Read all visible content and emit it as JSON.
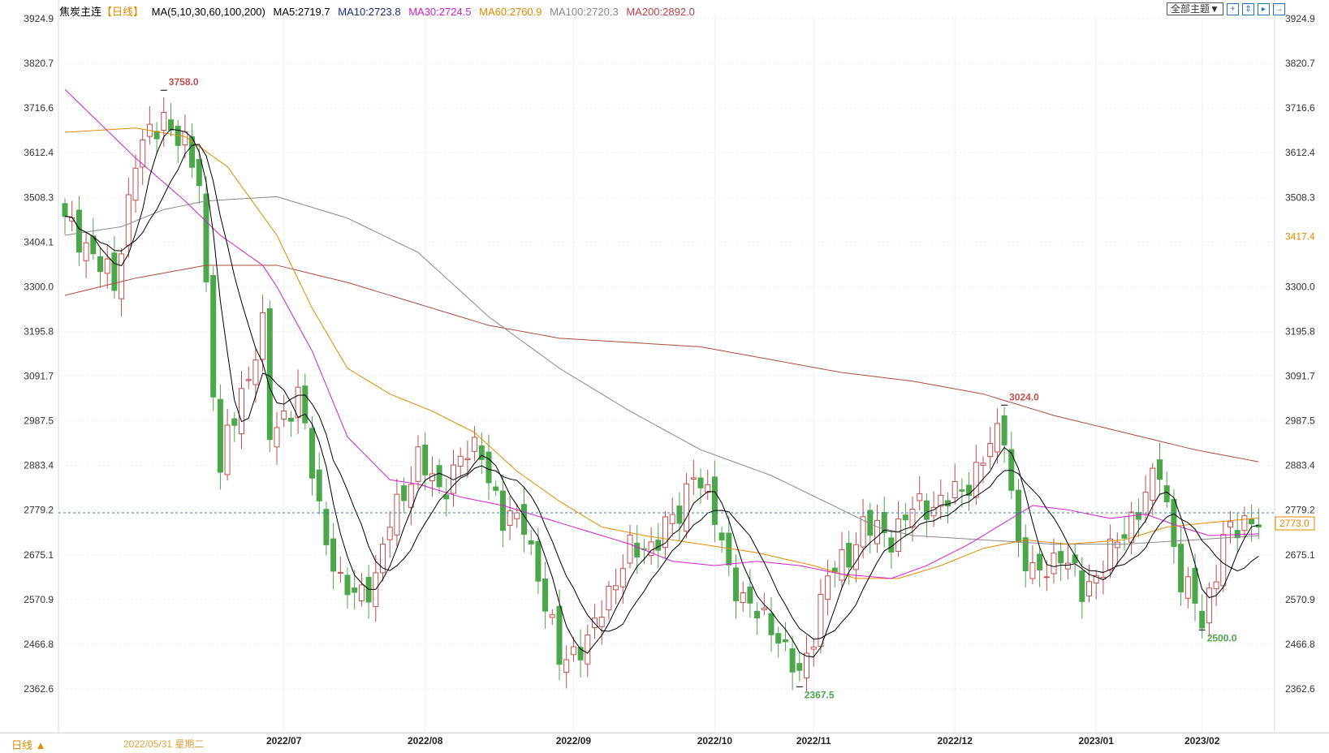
{
  "header": {
    "symbol": "焦炭主连",
    "period": "【日线】",
    "ma_title": "MA(5,10,30,60,100,200)",
    "ma5": "MA5:2719.7",
    "ma10": "MA10:2723.8",
    "ma30": "MA30:2724.5",
    "ma60": "MA60:2760.9",
    "ma100": "MA100:2720.3",
    "ma200": "MA200:2892.0"
  },
  "toolbar": {
    "theme": "全部主题▼",
    "icons": [
      "crosshair-icon",
      "zoom-range-icon",
      "zoom-in-icon",
      "shift-right-icon"
    ]
  },
  "bottom": {
    "period": "日线 ▲",
    "cursor_date": "2022/05/31 星期二"
  },
  "colors": {
    "up": "#c0504d",
    "down": "#4ca64c",
    "ma5": "#000000",
    "ma10": "#000000",
    "ma30": "#d020d0",
    "ma60": "#e08a00",
    "ma100": "#888888",
    "ma200": "#b04a3a"
  },
  "chart_data": {
    "type": "candlestick",
    "yticks": [
      "3924.9",
      "3820.7",
      "3716.6",
      "3612.4",
      "3508.3",
      "3404.1",
      "3300.0",
      "3195.8",
      "3091.7",
      "2987.5",
      "2883.4",
      "2779.2",
      "2675.1",
      "2570.9",
      "2466.8",
      "2362.6"
    ],
    "ylim": [
      2362.6,
      3924.9
    ],
    "xticks": [
      {
        "i": 31,
        "label": "2022/07"
      },
      {
        "i": 51,
        "label": "2022/08"
      },
      {
        "i": 72,
        "label": "2022/09"
      },
      {
        "i": 92,
        "label": "2022/10"
      },
      {
        "i": 106,
        "label": "2022/11"
      },
      {
        "i": 126,
        "label": "2022/12"
      },
      {
        "i": 146,
        "label": "2023/01"
      },
      {
        "i": 161,
        "label": "2023/02"
      }
    ],
    "candles": 170,
    "close_keypoints": [
      [
        0,
        3450
      ],
      [
        3,
        3400
      ],
      [
        7,
        3300
      ],
      [
        10,
        3600
      ],
      [
        14,
        3700
      ],
      [
        17,
        3620
      ],
      [
        19,
        3550
      ],
      [
        20,
        3300
      ],
      [
        22,
        2850
      ],
      [
        23,
        2950
      ],
      [
        26,
        3100
      ],
      [
        28,
        3200
      ],
      [
        29,
        2950
      ],
      [
        33,
        3050
      ],
      [
        36,
        2780
      ],
      [
        39,
        2600
      ],
      [
        41,
        2580
      ],
      [
        44,
        2620
      ],
      [
        46,
        2750
      ],
      [
        50,
        2900
      ],
      [
        53,
        2820
      ],
      [
        56,
        2900
      ],
      [
        59,
        2920
      ],
      [
        62,
        2750
      ],
      [
        65,
        2760
      ],
      [
        68,
        2550
      ],
      [
        70,
        2440
      ],
      [
        74,
        2460
      ],
      [
        76,
        2560
      ],
      [
        80,
        2680
      ],
      [
        83,
        2700
      ],
      [
        87,
        2770
      ],
      [
        89,
        2880
      ],
      [
        92,
        2760
      ],
      [
        94,
        2650
      ],
      [
        96,
        2560
      ],
      [
        100,
        2520
      ],
      [
        102,
        2440
      ],
      [
        104,
        2390
      ],
      [
        106,
        2500
      ],
      [
        108,
        2620
      ],
      [
        111,
        2680
      ],
      [
        113,
        2740
      ],
      [
        117,
        2720
      ],
      [
        120,
        2780
      ],
      [
        124,
        2800
      ],
      [
        127,
        2820
      ],
      [
        131,
        2930
      ],
      [
        133,
        2960
      ],
      [
        135,
        2700
      ],
      [
        137,
        2620
      ],
      [
        141,
        2680
      ],
      [
        144,
        2590
      ],
      [
        147,
        2650
      ],
      [
        149,
        2700
      ],
      [
        152,
        2790
      ],
      [
        155,
        2870
      ],
      [
        158,
        2620
      ],
      [
        160,
        2560
      ],
      [
        161,
        2510
      ],
      [
        164,
        2720
      ],
      [
        166,
        2730
      ],
      [
        169,
        2773
      ]
    ],
    "ma_keypoints": {
      "ma30": [
        [
          0,
          3760
        ],
        [
          10,
          3600
        ],
        [
          17,
          3500
        ],
        [
          22,
          3420
        ],
        [
          28,
          3350
        ],
        [
          30,
          3300
        ],
        [
          35,
          3150
        ],
        [
          40,
          2950
        ],
        [
          46,
          2850
        ],
        [
          50,
          2840
        ],
        [
          56,
          2810
        ],
        [
          62,
          2790
        ],
        [
          68,
          2760
        ],
        [
          74,
          2730
        ],
        [
          80,
          2700
        ],
        [
          86,
          2660
        ],
        [
          92,
          2650
        ],
        [
          98,
          2660
        ],
        [
          104,
          2650
        ],
        [
          110,
          2630
        ],
        [
          117,
          2620
        ],
        [
          122,
          2650
        ],
        [
          128,
          2700
        ],
        [
          133,
          2750
        ],
        [
          137,
          2790
        ],
        [
          142,
          2780
        ],
        [
          148,
          2760
        ],
        [
          153,
          2770
        ],
        [
          158,
          2740
        ],
        [
          162,
          2720
        ],
        [
          169,
          2724
        ]
      ],
      "ma60": [
        [
          0,
          3660
        ],
        [
          10,
          3670
        ],
        [
          17,
          3650
        ],
        [
          23,
          3580
        ],
        [
          30,
          3420
        ],
        [
          35,
          3250
        ],
        [
          40,
          3110
        ],
        [
          46,
          3050
        ],
        [
          52,
          3010
        ],
        [
          58,
          2960
        ],
        [
          64,
          2870
        ],
        [
          70,
          2800
        ],
        [
          76,
          2740
        ],
        [
          82,
          2720
        ],
        [
          90,
          2700
        ],
        [
          98,
          2680
        ],
        [
          106,
          2650
        ],
        [
          112,
          2620
        ],
        [
          118,
          2620
        ],
        [
          124,
          2650
        ],
        [
          130,
          2690
        ],
        [
          136,
          2710
        ],
        [
          142,
          2700
        ],
        [
          150,
          2710
        ],
        [
          156,
          2740
        ],
        [
          162,
          2750
        ],
        [
          169,
          2761
        ]
      ],
      "ma100": [
        [
          0,
          3420
        ],
        [
          8,
          3440
        ],
        [
          14,
          3480
        ],
        [
          20,
          3500
        ],
        [
          30,
          3510
        ],
        [
          40,
          3460
        ],
        [
          50,
          3380
        ],
        [
          60,
          3230
        ],
        [
          70,
          3110
        ],
        [
          80,
          3010
        ],
        [
          90,
          2920
        ],
        [
          100,
          2860
        ],
        [
          110,
          2780
        ],
        [
          115,
          2740
        ],
        [
          120,
          2720
        ],
        [
          130,
          2710
        ],
        [
          140,
          2700
        ],
        [
          150,
          2700
        ],
        [
          160,
          2710
        ],
        [
          169,
          2720
        ]
      ],
      "ma200": [
        [
          0,
          3280
        ],
        [
          10,
          3320
        ],
        [
          20,
          3350
        ],
        [
          30,
          3350
        ],
        [
          40,
          3310
        ],
        [
          50,
          3260
        ],
        [
          60,
          3210
        ],
        [
          70,
          3180
        ],
        [
          80,
          3170
        ],
        [
          90,
          3160
        ],
        [
          100,
          3130
        ],
        [
          110,
          3100
        ],
        [
          120,
          3080
        ],
        [
          130,
          3050
        ],
        [
          140,
          3000
        ],
        [
          150,
          2960
        ],
        [
          160,
          2920
        ],
        [
          169,
          2892
        ]
      ]
    },
    "annotations": [
      {
        "i": 14,
        "price": 3758.0,
        "label": "3758.0",
        "type": "high"
      },
      {
        "i": 133,
        "price": 3024.0,
        "label": "3024.0",
        "type": "high"
      },
      {
        "i": 104,
        "price": 2367.5,
        "label": "2367.5",
        "type": "low"
      },
      {
        "i": 161,
        "price": 2500.0,
        "label": "2500.0",
        "type": "low"
      }
    ],
    "last_price": "2773.0",
    "last_value": 2773.0,
    "marker_label": "3417.4",
    "marker_value": 3417.4
  }
}
